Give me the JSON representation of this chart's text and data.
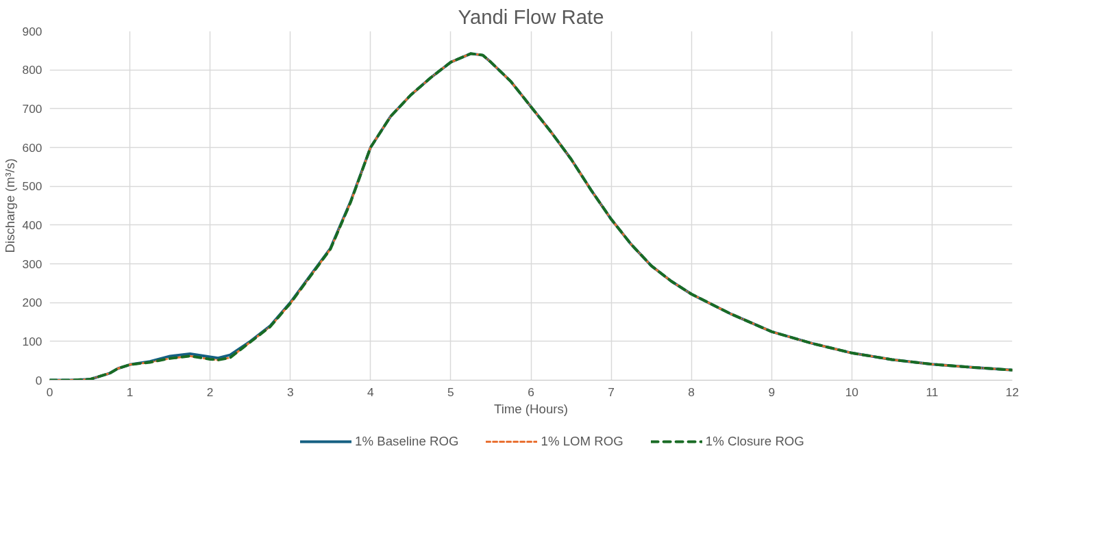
{
  "chart_data": {
    "type": "line",
    "title": "Yandi Flow Rate",
    "xlabel": "Time (Hours)",
    "ylabel": "Discharge (m³/s)",
    "xlim": [
      0,
      12
    ],
    "xticks": [
      0,
      1,
      2,
      3,
      4,
      5,
      6,
      7,
      8,
      9,
      10,
      11,
      12
    ],
    "ylim": [
      0,
      900
    ],
    "yticks": [
      0,
      100,
      200,
      300,
      400,
      500,
      600,
      700,
      800,
      900
    ],
    "grid": true,
    "legend": "bottom",
    "marker": "none",
    "x": [
      0,
      0.25,
      0.5,
      0.75,
      0.85,
      1,
      1.25,
      1.5,
      1.75,
      2,
      2.1,
      2.25,
      2.5,
      2.75,
      3,
      3.25,
      3.5,
      3.75,
      4,
      4.25,
      4.5,
      4.75,
      5,
      5.25,
      5.4,
      5.5,
      5.75,
      6,
      6.25,
      6.5,
      6.75,
      7,
      7.25,
      7.5,
      7.75,
      8,
      8.5,
      9,
      9.5,
      10,
      10.5,
      11,
      11.5,
      12
    ],
    "series": [
      {
        "name": "1% Baseline ROG",
        "color": "#156082",
        "line_style": "solid",
        "values": [
          0,
          0,
          2,
          18,
          30,
          40,
          48,
          62,
          68,
          60,
          57,
          65,
          100,
          140,
          200,
          270,
          340,
          460,
          600,
          680,
          735,
          780,
          820,
          842,
          838,
          820,
          770,
          705,
          640,
          570,
          490,
          415,
          350,
          295,
          255,
          222,
          170,
          125,
          95,
          70,
          53,
          41,
          33,
          26
        ]
      },
      {
        "name": "1% LOM ROG",
        "color": "#e97132",
        "line_style": "dotted",
        "values": [
          0,
          0,
          2,
          18,
          30,
          40,
          46,
          56,
          62,
          54,
          52,
          58,
          98,
          138,
          198,
          268,
          338,
          458,
          600,
          680,
          735,
          780,
          820,
          842,
          838,
          820,
          770,
          705,
          640,
          570,
          490,
          415,
          350,
          295,
          255,
          222,
          170,
          125,
          95,
          70,
          53,
          41,
          33,
          26
        ]
      },
      {
        "name": "1% Closure ROG",
        "color": "#196b24",
        "line_style": "dashed",
        "values": [
          0,
          0,
          2,
          18,
          30,
          40,
          46,
          56,
          62,
          54,
          52,
          58,
          98,
          138,
          198,
          268,
          338,
          458,
          600,
          680,
          735,
          780,
          820,
          842,
          838,
          820,
          770,
          705,
          640,
          570,
          490,
          415,
          350,
          295,
          255,
          222,
          170,
          125,
          95,
          70,
          53,
          41,
          33,
          26
        ]
      }
    ]
  }
}
